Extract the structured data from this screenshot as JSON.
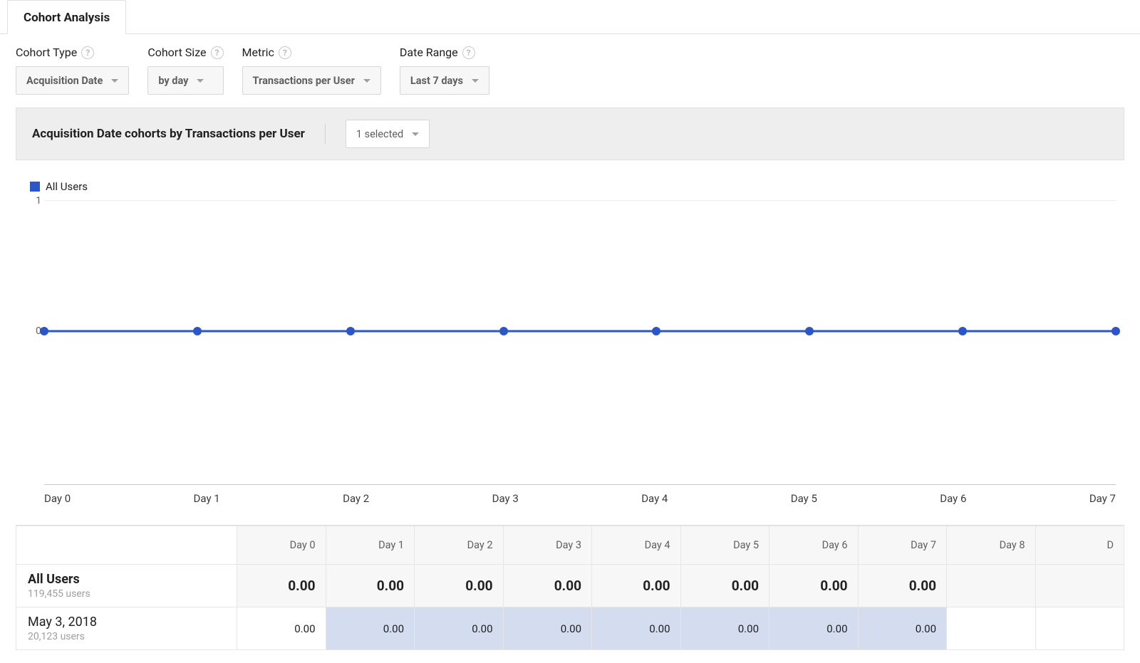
{
  "tabs": {
    "active": "Cohort Analysis"
  },
  "controls": {
    "cohort_type": {
      "label": "Cohort Type",
      "value": "Acquisition Date"
    },
    "cohort_size": {
      "label": "Cohort Size",
      "value": "by day"
    },
    "metric": {
      "label": "Metric",
      "value": "Transactions per User"
    },
    "date_range": {
      "label": "Date Range",
      "value": "Last 7 days"
    }
  },
  "panel": {
    "title": "Acquisition Date cohorts by Transactions per User",
    "selector_value": "1 selected"
  },
  "chart": {
    "type": "line",
    "series": [
      {
        "name": "All Users",
        "color": "#2a56c6",
        "values": [
          0,
          0,
          0,
          0,
          0,
          0,
          0,
          0
        ]
      }
    ],
    "x_labels": [
      "Day 0",
      "Day 1",
      "Day 2",
      "Day 3",
      "Day 4",
      "Day 5",
      "Day 6",
      "Day 7"
    ],
    "ylim": [
      0,
      1
    ],
    "y_ticks": [
      0,
      1
    ],
    "zero_line_pct_from_top": 46,
    "grid_color": "#eeeeee",
    "axis_color": "#c9c9c9",
    "marker_radius": 6,
    "line_width": 3,
    "background": "#ffffff"
  },
  "table": {
    "columns": [
      "Day 0",
      "Day 1",
      "Day 2",
      "Day 3",
      "Day 4",
      "Day 5",
      "Day 6",
      "Day 7",
      "Day 8",
      "D"
    ],
    "total_row": {
      "title": "All Users",
      "subtitle": "119,455 users",
      "cells": [
        "0.00",
        "0.00",
        "0.00",
        "0.00",
        "0.00",
        "0.00",
        "0.00",
        "0.00",
        "",
        ""
      ],
      "cell_bg": "#f7f7f7"
    },
    "rows": [
      {
        "title": "May 3, 2018",
        "subtitle": "20,123 users",
        "cells": [
          "0.00",
          "0.00",
          "0.00",
          "0.00",
          "0.00",
          "0.00",
          "0.00",
          "0.00",
          "",
          ""
        ],
        "cell_bgs": [
          "#ffffff",
          "#d4dcf0",
          "#d4dcf0",
          "#d4dcf0",
          "#d4dcf0",
          "#d4dcf0",
          "#d4dcf0",
          "#d4dcf0",
          "#ffffff",
          "#ffffff"
        ]
      }
    ]
  }
}
